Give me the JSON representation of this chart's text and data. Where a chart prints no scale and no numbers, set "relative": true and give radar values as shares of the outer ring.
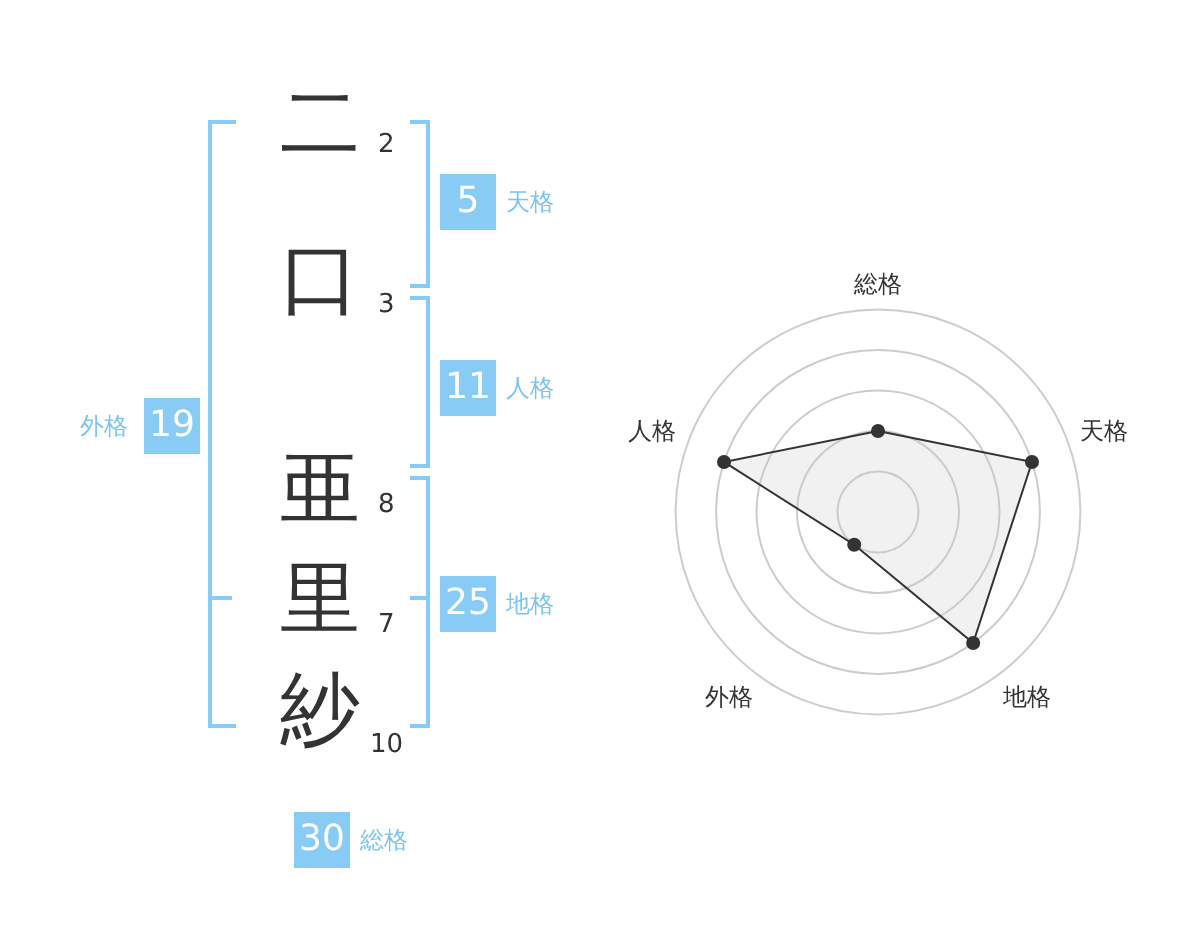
{
  "chart_data": [
    {
      "type": "other",
      "categories": [
        "二",
        "口",
        "亜",
        "里",
        "紗"
      ],
      "annotations": [
        "2",
        "3",
        "8",
        "7",
        "10",
        "5",
        "11",
        "25",
        "19",
        "30",
        "天格",
        "人格",
        "地格",
        "外格",
        "総格"
      ]
    },
    {
      "type": "radar",
      "relative": true,
      "categories": [
        "総格",
        "天格",
        "地格",
        "外格",
        "人格"
      ],
      "series": [
        {
          "color": "#333333",
          "values": [
            0.4,
            0.8,
            0.8,
            0.2,
            0.8
          ]
        }
      ],
      "grid": true,
      "legend": false,
      "marker": "circle"
    }
  ]
}
